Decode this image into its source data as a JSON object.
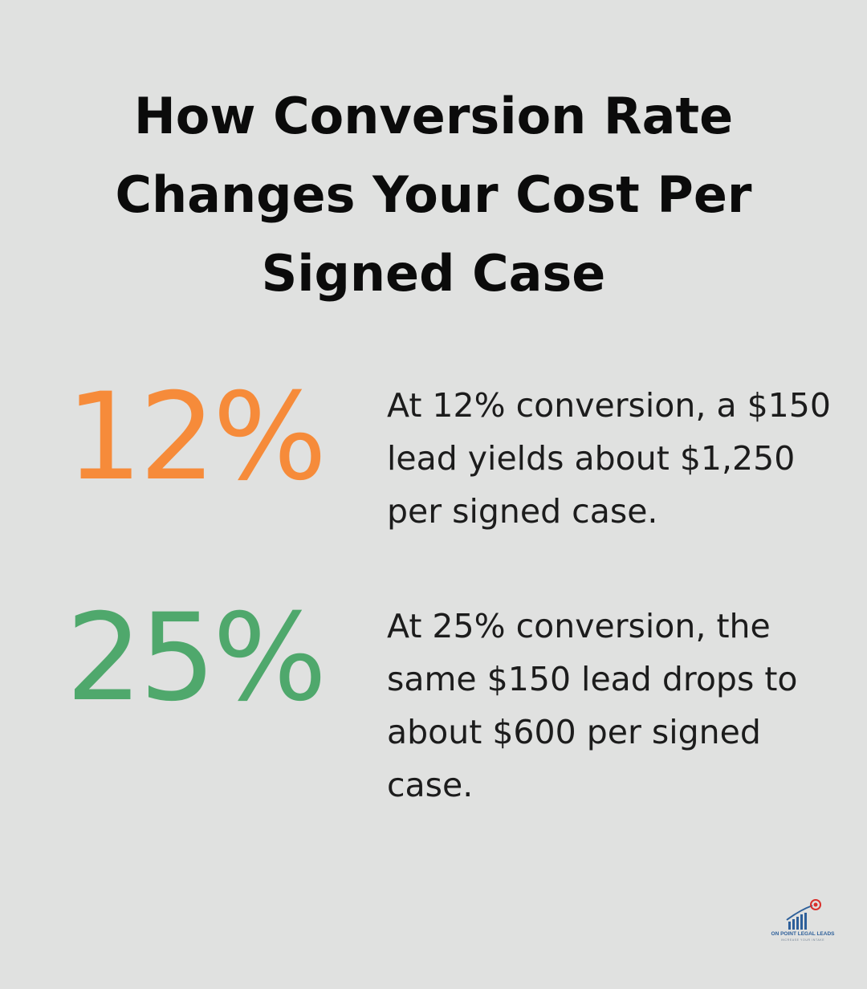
{
  "title": "How Conversion Rate Changes Your Cost Per Signed Case",
  "stats": [
    {
      "value": "12%",
      "description": "At 12% conversion, a $150 lead yields about $1,250 per signed case.",
      "color": "#f68b3a"
    },
    {
      "value": "25%",
      "description": "At 25% conversion, the same $150 lead drops to about $600 per signed case.",
      "color": "#4fa86c"
    }
  ],
  "logo": {
    "name": "ON POINT LEGAL LEADS",
    "tagline": "INCREASE YOUR INTAKE",
    "colors": {
      "primary": "#2d5f9a",
      "accent": "#d9302c"
    },
    "icon": "bar-chart-target-icon"
  },
  "colors": {
    "background": "#e0e1e0",
    "title": "#0b0b0b",
    "text": "#1c1c1c"
  }
}
